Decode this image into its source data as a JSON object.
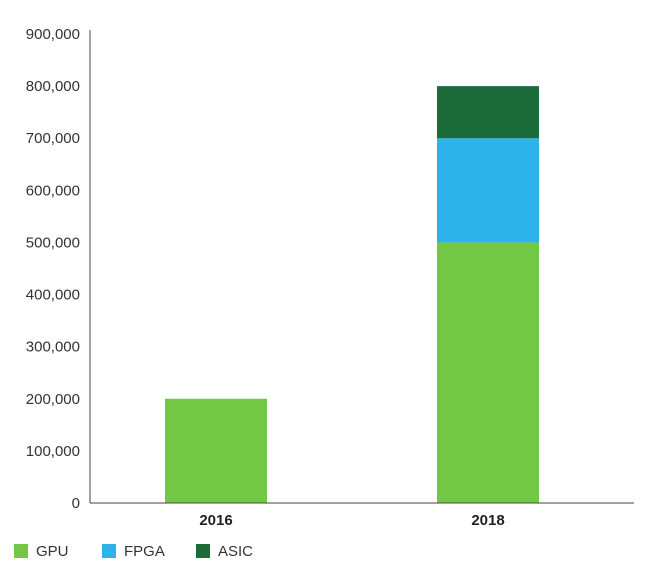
{
  "chart_data": {
    "type": "bar",
    "stacked": true,
    "title": "",
    "xlabel": "",
    "ylabel": "",
    "categories": [
      "2016",
      "2018"
    ],
    "series": [
      {
        "name": "GPU",
        "values": [
          200000,
          500000
        ],
        "color": "#72c744"
      },
      {
        "name": "FPGA",
        "values": [
          0,
          200000
        ],
        "color": "#2cb3ea"
      },
      {
        "name": "ASIC",
        "values": [
          0,
          100000
        ],
        "color": "#1c6b3a"
      }
    ],
    "yticks": [
      "0",
      "100,000",
      "200,000",
      "300,000",
      "400,000",
      "500,000",
      "600,000",
      "700,000",
      "800,000",
      "900,000"
    ],
    "ylim": [
      0,
      900000
    ],
    "grid": false,
    "legend_position": "bottom-left"
  }
}
